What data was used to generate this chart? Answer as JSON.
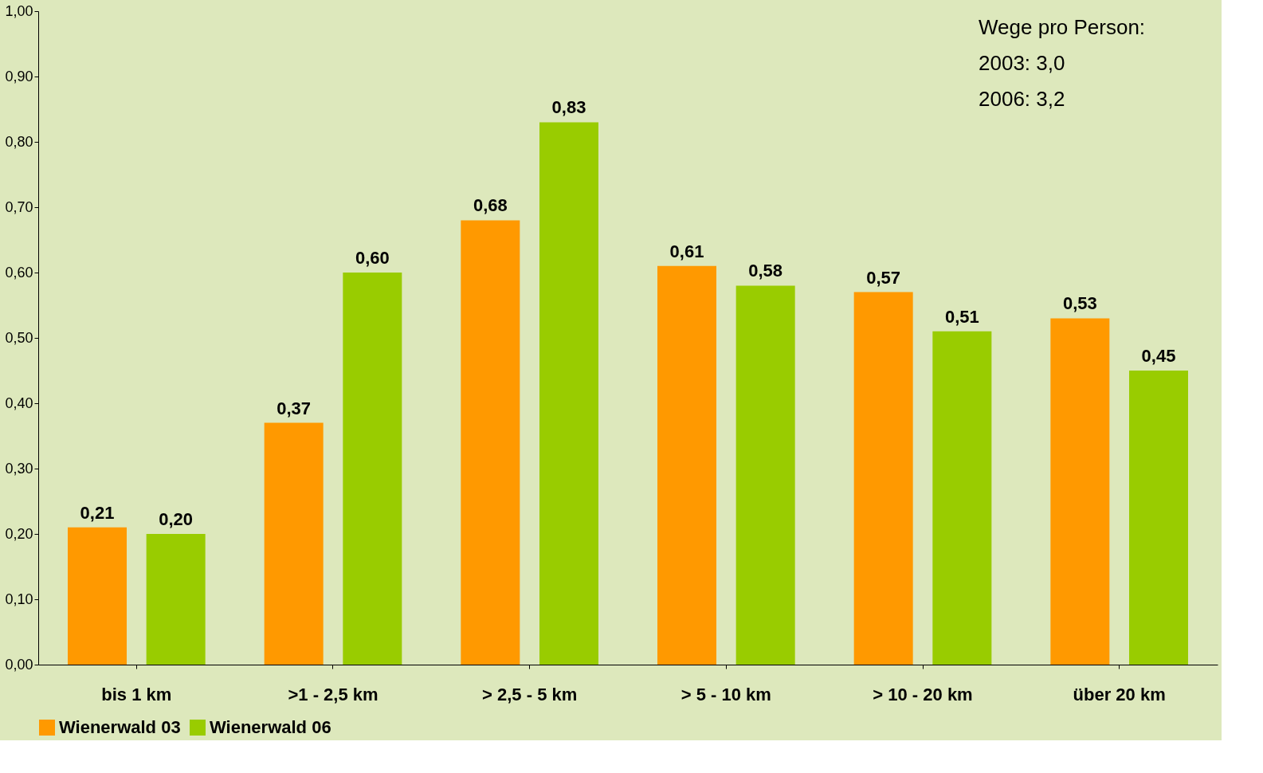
{
  "chart_data": {
    "type": "bar",
    "categories": [
      "bis 1 km",
      ">1 - 2,5 km",
      "> 2,5 - 5 km",
      "> 5 - 10 km",
      "> 10 - 20 km",
      "über 20 km"
    ],
    "series": [
      {
        "name": "Wienerwald 03",
        "color": "#ff9900",
        "values": [
          0.21,
          0.37,
          0.68,
          0.61,
          0.57,
          0.53
        ],
        "value_labels": [
          "0,21",
          "0,37",
          "0,68",
          "0,61",
          "0,57",
          "0,53"
        ]
      },
      {
        "name": "Wienerwald 06",
        "color": "#99cc00",
        "values": [
          0.2,
          0.6,
          0.83,
          0.58,
          0.51,
          0.45
        ],
        "value_labels": [
          "0,20",
          "0,60",
          "0,83",
          "0,58",
          "0,51",
          "0,45"
        ]
      }
    ],
    "ylim": [
      0,
      1
    ],
    "yticks": [
      {
        "value": 0,
        "label": "0,00"
      },
      {
        "value": 0.1,
        "label": "0,10"
      },
      {
        "value": 0.2,
        "label": "0,20"
      },
      {
        "value": 0.3,
        "label": "0,30"
      },
      {
        "value": 0.4,
        "label": "0,40"
      },
      {
        "value": 0.5,
        "label": "0,50"
      },
      {
        "value": 0.6,
        "label": "0,60"
      },
      {
        "value": 0.7,
        "label": "0,70"
      },
      {
        "value": 0.8,
        "label": "0,80"
      },
      {
        "value": 0.9,
        "label": "0,90"
      },
      {
        "value": 1,
        "label": "1,00"
      }
    ],
    "annotations": [
      "Wege pro Person:",
      "2003: 3,0",
      "2006: 3,2"
    ],
    "grid": false,
    "legend": "bottom"
  }
}
